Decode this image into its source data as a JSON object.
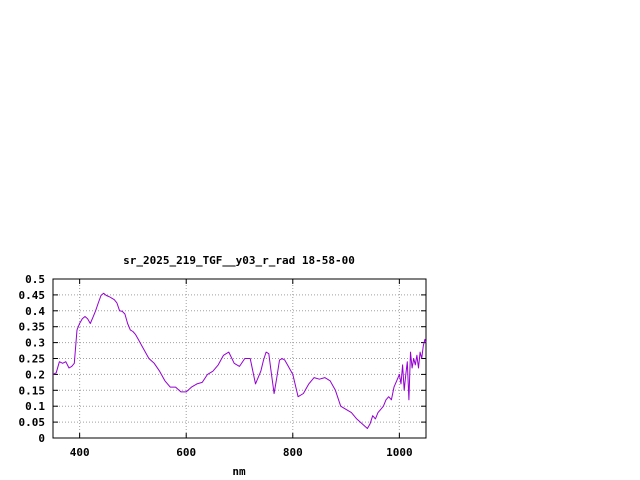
{
  "chart_data": {
    "type": "line",
    "title": "sr_2025_219_TGF__y03_r_rad 18-58-00",
    "xlabel": "nm",
    "ylabel": "",
    "xlim": [
      350,
      1050
    ],
    "ylim": [
      0,
      0.5
    ],
    "xticks": [
      400,
      600,
      800,
      1000
    ],
    "xtick_labels": [
      "400",
      "600",
      "800",
      "1000"
    ],
    "yticks": [
      0,
      0.05,
      0.1,
      0.15,
      0.2,
      0.25,
      0.3,
      0.35,
      0.4,
      0.45,
      0.5
    ],
    "ytick_labels": [
      "0",
      "0.05",
      "0.1",
      "0.15",
      "0.2",
      "0.25",
      "0.3",
      "0.35",
      "0.4",
      "0.45",
      "0.5"
    ],
    "grid": true,
    "legend": "none",
    "line_color": "#9400d3",
    "series": [
      {
        "x": [
          350,
          356,
          362,
          368,
          374,
          380,
          385,
          390,
          395,
          400,
          405,
          410,
          415,
          420,
          425,
          430,
          435,
          440,
          445,
          450,
          455,
          460,
          465,
          470,
          475,
          480,
          485,
          490,
          495,
          500,
          505,
          510,
          520,
          530,
          540,
          550,
          560,
          570,
          580,
          590,
          600,
          610,
          620,
          630,
          640,
          650,
          660,
          670,
          680,
          690,
          700,
          710,
          720,
          730,
          740,
          745,
          750,
          755,
          760,
          765,
          770,
          775,
          780,
          785,
          790,
          800,
          810,
          820,
          830,
          840,
          850,
          860,
          870,
          880,
          890,
          900,
          910,
          920,
          930,
          940,
          945,
          950,
          955,
          960,
          965,
          970,
          975,
          980,
          985,
          990,
          995,
          1000,
          1003,
          1006,
          1009,
          1012,
          1015,
          1018,
          1021,
          1024,
          1027,
          1030,
          1033,
          1036,
          1039,
          1042,
          1045,
          1048,
          1050
        ],
        "y": [
          0.2,
          0.205,
          0.24,
          0.235,
          0.24,
          0.22,
          0.225,
          0.235,
          0.34,
          0.36,
          0.375,
          0.382,
          0.375,
          0.36,
          0.38,
          0.4,
          0.425,
          0.448,
          0.455,
          0.448,
          0.445,
          0.44,
          0.435,
          0.425,
          0.4,
          0.398,
          0.39,
          0.36,
          0.34,
          0.335,
          0.325,
          0.31,
          0.28,
          0.25,
          0.235,
          0.21,
          0.18,
          0.16,
          0.16,
          0.145,
          0.145,
          0.16,
          0.17,
          0.175,
          0.2,
          0.21,
          0.23,
          0.26,
          0.27,
          0.235,
          0.225,
          0.25,
          0.25,
          0.17,
          0.21,
          0.245,
          0.27,
          0.265,
          0.2,
          0.14,
          0.19,
          0.245,
          0.25,
          0.245,
          0.23,
          0.2,
          0.13,
          0.14,
          0.17,
          0.19,
          0.185,
          0.19,
          0.18,
          0.15,
          0.1,
          0.09,
          0.08,
          0.06,
          0.045,
          0.03,
          0.045,
          0.07,
          0.06,
          0.08,
          0.09,
          0.1,
          0.12,
          0.13,
          0.12,
          0.16,
          0.18,
          0.2,
          0.17,
          0.23,
          0.15,
          0.2,
          0.24,
          0.12,
          0.27,
          0.22,
          0.25,
          0.23,
          0.26,
          0.22,
          0.27,
          0.25,
          0.29,
          0.31,
          0.3
        ]
      }
    ]
  }
}
